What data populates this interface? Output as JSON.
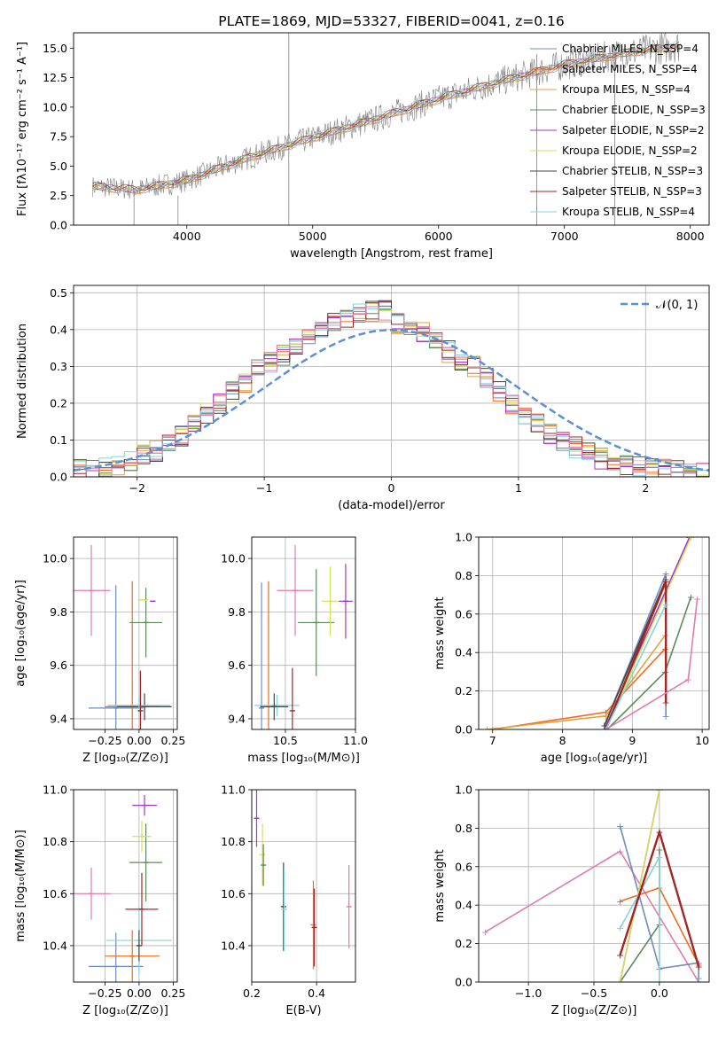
{
  "chart_data": [
    {
      "id": "spectrum",
      "type": "line",
      "title": "PLATE=1869, MJD=53327, FIBERID=0041, z=0.16",
      "xlabel": "wavelength [Angstrom, rest frame]",
      "ylabel": "Flux [fλ10⁻¹⁷ erg cm⁻² s⁻¹ A⁻¹]",
      "xlim": [
        3100,
        8150
      ],
      "ylim": [
        0,
        16.3
      ],
      "xticks": [
        4000,
        5000,
        6000,
        7000,
        8000
      ],
      "yticks": [
        0.0,
        2.5,
        5.0,
        7.5,
        10.0,
        12.5,
        15.0
      ],
      "grid": false,
      "legend_placement": "top-right",
      "data_shape": [
        [
          3250,
          3.3
        ],
        [
          3600,
          3.0
        ],
        [
          3800,
          3.4
        ],
        [
          4000,
          3.8
        ],
        [
          4300,
          5.0
        ],
        [
          4600,
          6.1
        ],
        [
          5000,
          7.4
        ],
        [
          5500,
          9.0
        ],
        [
          6000,
          10.7
        ],
        [
          6500,
          12.2
        ],
        [
          7000,
          13.6
        ],
        [
          7500,
          14.6
        ],
        [
          7900,
          15.2
        ]
      ],
      "series": [
        {
          "name": "Chabrier MILES, N_SSP=4",
          "color": "#6c8ebf"
        },
        {
          "name": "Salpeter MILES, N_SSP=4",
          "color": "#f26b21"
        },
        {
          "name": "Kroupa MILES, N_SSP=4",
          "color": "#e3a23c"
        },
        {
          "name": "Chabrier ELODIE, N_SSP=3",
          "color": "#5b8c5a"
        },
        {
          "name": "Salpeter ELODIE, N_SSP=2",
          "color": "#a335c7"
        },
        {
          "name": "Kroupa ELODIE, N_SSP=2",
          "color": "#d4e157"
        },
        {
          "name": "Chabrier STELIB, N_SSP=3",
          "color": "#444444"
        },
        {
          "name": "Salpeter STELIB, N_SSP=3",
          "color": "#a32626"
        },
        {
          "name": "Kroupa STELIB, N_SSP=4",
          "color": "#82d4dc"
        }
      ]
    },
    {
      "id": "residuals",
      "type": "histogram",
      "xlabel": "(data-model)/error",
      "ylabel": "Normed distribution",
      "xlim": [
        -2.5,
        2.5
      ],
      "ylim": [
        0,
        0.52
      ],
      "xticks": [
        -2,
        -1,
        0,
        1,
        2
      ],
      "xtick_labels": [
        "−2",
        "−1",
        "0",
        "1",
        "2"
      ],
      "yticks": [
        0.0,
        0.1,
        0.2,
        0.3,
        0.4,
        0.5
      ],
      "grid": true,
      "legend_placement": "top-right",
      "gaussian_label": "𝒩(0, 1)",
      "gaussian_color": "#5b8fd6",
      "bins": [
        -2.5,
        -2.4,
        -2.3,
        -2.2,
        -2.1,
        -2.0,
        -1.9,
        -1.8,
        -1.7,
        -1.6,
        -1.5,
        -1.4,
        -1.3,
        -1.2,
        -1.1,
        -1.0,
        -0.9,
        -0.8,
        -0.7,
        -0.6,
        -0.5,
        -0.4,
        -0.3,
        -0.2,
        -0.1,
        0.0,
        0.1,
        0.2,
        0.3,
        0.4,
        0.5,
        0.6,
        0.7,
        0.8,
        0.9,
        1.0,
        1.1,
        1.2,
        1.3,
        1.4,
        1.5,
        1.6,
        1.7,
        1.8,
        1.9,
        2.0,
        2.1,
        2.2,
        2.3,
        2.4,
        2.5
      ],
      "envelope": [
        0.02,
        0.02,
        0.025,
        0.035,
        0.045,
        0.06,
        0.07,
        0.09,
        0.11,
        0.14,
        0.17,
        0.2,
        0.23,
        0.26,
        0.29,
        0.31,
        0.33,
        0.36,
        0.38,
        0.41,
        0.42,
        0.43,
        0.44,
        0.45,
        0.45,
        0.42,
        0.41,
        0.39,
        0.37,
        0.34,
        0.32,
        0.3,
        0.27,
        0.23,
        0.2,
        0.17,
        0.15,
        0.12,
        0.1,
        0.08,
        0.07,
        0.05,
        0.04,
        0.03,
        0.025,
        0.02,
        0.02,
        0.015,
        0.015,
        0.01
      ]
    },
    {
      "id": "age-vs-Z",
      "type": "scatter",
      "xlabel": "Z [log₁₀(Z/Z⊙)]",
      "ylabel": "age  [log₁₀(age/yr)]",
      "xlim": [
        -0.48,
        0.28
      ],
      "ylim": [
        9.36,
        10.08
      ],
      "xticks": [
        -0.25,
        0.0,
        0.25
      ],
      "xtick_labels": [
        "−0.25",
        "0.00",
        "0.25"
      ],
      "yticks": [
        9.4,
        9.6,
        9.8,
        10.0
      ],
      "grid": true,
      "points": [
        {
          "x": -0.35,
          "y": 9.88,
          "xerr": 0.14,
          "yerr": 0.17,
          "color": "#e07bb0"
        },
        {
          "x": -0.17,
          "y": 9.44,
          "xerr": 0.2,
          "yerr": 0.46,
          "color": "#6c8ebf"
        },
        {
          "x": -0.05,
          "y": 9.445,
          "xerr": 0.2,
          "yerr": 0.47,
          "color": "#f26b21"
        },
        {
          "x": 0.04,
          "y": 9.445,
          "xerr": 0.2,
          "yerr": 0.05,
          "color": "#444444"
        },
        {
          "x": 0.05,
          "y": 9.76,
          "xerr": 0.12,
          "yerr": 0.13,
          "color": "#5b8c5a"
        },
        {
          "x": 0.1,
          "y": 9.84,
          "xerr": 0.02,
          "yerr": 0.0,
          "color": "#a335c7"
        },
        {
          "x": 0.03,
          "y": 9.845,
          "xerr": 0.04,
          "yerr": 0.0,
          "color": "#d4e157"
        },
        {
          "x": 0.0,
          "y": 9.45,
          "xerr": 0.23,
          "yerr": 0.03,
          "color": "#82d4dc"
        },
        {
          "x": 0.01,
          "y": 9.43,
          "xerr": 0.0,
          "yerr": 0.15,
          "color": "#a32626"
        }
      ]
    },
    {
      "id": "age-vs-mass",
      "type": "scatter",
      "xlabel": "mass [log₁₀(M/M⊙)]",
      "ylabel": "",
      "xlim": [
        10.26,
        11.0
      ],
      "ylim": [
        9.36,
        10.08
      ],
      "xticks": [
        10.5,
        11.0
      ],
      "xtick_labels": [
        "10.5",
        "11.0"
      ],
      "yticks": [
        9.4,
        9.6,
        9.8,
        10.0
      ],
      "grid": true,
      "points": [
        {
          "x": 10.57,
          "y": 9.88,
          "xerr": 0.13,
          "yerr": 0.17,
          "color": "#e07bb0"
        },
        {
          "x": 10.33,
          "y": 9.44,
          "xerr": 0.0,
          "yerr": 0.47,
          "color": "#6c8ebf"
        },
        {
          "x": 10.38,
          "y": 9.445,
          "xerr": 0.0,
          "yerr": 0.47,
          "color": "#f26b21"
        },
        {
          "x": 10.72,
          "y": 9.76,
          "xerr": 0.13,
          "yerr": 0.2,
          "color": "#5b8c5a"
        },
        {
          "x": 10.93,
          "y": 9.84,
          "xerr": 0.05,
          "yerr": 0.14,
          "color": "#a335c7"
        },
        {
          "x": 10.82,
          "y": 9.84,
          "xerr": 0.06,
          "yerr": 0.13,
          "color": "#d4e157"
        },
        {
          "x": 10.44,
          "y": 9.45,
          "xerr": 0.16,
          "yerr": 0.04,
          "color": "#82d4dc"
        },
        {
          "x": 10.55,
          "y": 9.43,
          "xerr": 0.0,
          "yerr": 0.16,
          "color": "#a32626"
        },
        {
          "x": 10.42,
          "y": 9.445,
          "xerr": 0.1,
          "yerr": 0.05,
          "color": "#444444"
        }
      ]
    },
    {
      "id": "mass-weight-vs-age",
      "type": "line",
      "xlabel": "age  [log₁₀(age/yr)]",
      "ylabel": "mass weight",
      "xlim": [
        6.8,
        10.1
      ],
      "ylim": [
        0,
        1.0
      ],
      "xticks": [
        7,
        8,
        9,
        10
      ],
      "yticks": [
        0.0,
        0.2,
        0.4,
        0.6,
        0.8,
        1.0
      ],
      "grid": true,
      "series": [
        {
          "color": "#6c8ebf",
          "x": [
            8.6,
            9.48,
            9.48
          ],
          "y": [
            0.02,
            0.81,
            0.07
          ]
        },
        {
          "color": "#f26b21",
          "x": [
            7.0,
            8.62,
            9.47
          ],
          "y": [
            0.0,
            0.09,
            0.42
          ]
        },
        {
          "color": "#e3a23c",
          "x": [
            6.92,
            8.62,
            9.47
          ],
          "y": [
            0.0,
            0.07,
            0.49
          ]
        },
        {
          "color": "#5b8c5a",
          "x": [
            8.64,
            9.47,
            9.84
          ],
          "y": [
            0.0,
            0.3,
            0.69
          ]
        },
        {
          "color": "#a335c7",
          "x": [
            8.6,
            9.82
          ],
          "y": [
            0.0,
            1.0
          ]
        },
        {
          "color": "#d4e157",
          "x": [
            8.62,
            9.84
          ],
          "y": [
            0.0,
            1.0
          ]
        },
        {
          "color": "#444444",
          "x": [
            8.6,
            9.48
          ],
          "y": [
            0.02,
            0.78
          ]
        },
        {
          "color": "#a32626",
          "x": [
            8.62,
            9.48,
            9.48
          ],
          "y": [
            0.0,
            0.77,
            0.14
          ]
        },
        {
          "color": "#82d4dc",
          "x": [
            8.62,
            9.48
          ],
          "y": [
            0.0,
            0.65
          ]
        },
        {
          "color": "#e07bb0",
          "x": [
            8.62,
            9.8,
            9.93
          ],
          "y": [
            0.0,
            0.26,
            0.68
          ]
        }
      ]
    },
    {
      "id": "mass-vs-Z",
      "type": "scatter",
      "xlabel": "Z [log₁₀(Z/Z⊙)]",
      "ylabel": "mass [log₁₀(M/M⊙)]",
      "xlim": [
        -0.48,
        0.28
      ],
      "ylim": [
        10.26,
        11.0
      ],
      "xticks": [
        -0.25,
        0.0,
        0.25
      ],
      "xtick_labels": [
        "−0.25",
        "0.00",
        "0.25"
      ],
      "yticks": [
        10.4,
        10.6,
        10.8,
        11.0
      ],
      "grid": true,
      "points": [
        {
          "x": -0.35,
          "y": 10.6,
          "xerr": 0.14,
          "yerr": 0.1,
          "color": "#e07bb0"
        },
        {
          "x": -0.17,
          "y": 10.32,
          "xerr": 0.2,
          "yerr": 0.13,
          "color": "#6c8ebf"
        },
        {
          "x": -0.05,
          "y": 10.36,
          "xerr": 0.2,
          "yerr": 0.1,
          "color": "#f26b21"
        },
        {
          "x": 0.05,
          "y": 10.72,
          "xerr": 0.12,
          "yerr": 0.15,
          "color": "#5b8c5a"
        },
        {
          "x": 0.04,
          "y": 10.94,
          "xerr": 0.09,
          "yerr": 0.04,
          "color": "#a335c7"
        },
        {
          "x": 0.02,
          "y": 10.82,
          "xerr": 0.07,
          "yerr": 0.06,
          "color": "#d4e157"
        },
        {
          "x": 0.0,
          "y": 10.42,
          "xerr": 0.24,
          "yerr": 0.13,
          "color": "#82d4dc"
        },
        {
          "x": 0.02,
          "y": 10.54,
          "xerr": 0.12,
          "yerr": 0.14,
          "color": "#a32626"
        },
        {
          "x": 0.0,
          "y": 10.4,
          "xerr": 0.0,
          "yerr": 0.06,
          "color": "#444444"
        }
      ]
    },
    {
      "id": "mass-vs-EBV",
      "type": "scatter",
      "xlabel": "E(B-V)",
      "ylabel": "",
      "xlim": [
        0.2,
        0.52
      ],
      "ylim": [
        10.26,
        11.0
      ],
      "xticks": [
        0.2,
        0.4
      ],
      "xtick_labels": [
        "0.2",
        "0.4"
      ],
      "yticks": [
        10.4,
        10.6,
        10.8,
        11.0
      ],
      "grid": true,
      "points": [
        {
          "x": 0.215,
          "y": 10.89,
          "xerr": 0.0,
          "yerr": 0.11,
          "color": "#a335c7"
        },
        {
          "x": 0.233,
          "y": 10.75,
          "xerr": 0.0,
          "yerr": 0.12,
          "color": "#d4e157"
        },
        {
          "x": 0.236,
          "y": 10.71,
          "xerr": 0.0,
          "yerr": 0.08,
          "color": "#5b8c5a"
        },
        {
          "x": 0.298,
          "y": 10.55,
          "xerr": 0.0,
          "yerr": 0.17,
          "color": "#444444"
        },
        {
          "x": 0.3,
          "y": 10.54,
          "xerr": 0.0,
          "yerr": 0.16,
          "color": "#82d4dc"
        },
        {
          "x": 0.39,
          "y": 10.48,
          "xerr": 0.0,
          "yerr": 0.17,
          "color": "#f26b21"
        },
        {
          "x": 0.393,
          "y": 10.47,
          "xerr": 0.0,
          "yerr": 0.15,
          "color": "#a32626"
        },
        {
          "x": 0.5,
          "y": 10.55,
          "xerr": 0.0,
          "yerr": 0.16,
          "color": "#e07bb0"
        }
      ]
    },
    {
      "id": "mass-weight-vs-Z",
      "type": "line",
      "xlabel": "Z [log₁₀(Z/Z⊙)]",
      "ylabel": "mass weight",
      "xlim": [
        -1.38,
        0.38
      ],
      "ylim": [
        0,
        1.0
      ],
      "xticks": [
        -1.0,
        -0.5,
        0.0
      ],
      "xtick_labels": [
        "−1.0",
        "−0.5",
        "0.0"
      ],
      "yticks": [
        0.0,
        0.2,
        0.4,
        0.6,
        0.8,
        1.0
      ],
      "grid": true,
      "series": [
        {
          "color": "#e07bb0",
          "x": [
            -1.33,
            -0.3,
            0.3
          ],
          "y": [
            0.26,
            0.68,
            0.0
          ]
        },
        {
          "color": "#6c8ebf",
          "x": [
            -0.3,
            0.0,
            0.3,
            0.3
          ],
          "y": [
            0.81,
            0.07,
            0.1,
            0.02
          ]
        },
        {
          "color": "#f26b21",
          "x": [
            -0.3,
            0.0,
            0.3
          ],
          "y": [
            0.42,
            0.49,
            0.09
          ]
        },
        {
          "color": "#5b8c5a",
          "x": [
            -0.3,
            0.0,
            0.0
          ],
          "y": [
            0.0,
            0.3,
            0.69
          ]
        },
        {
          "color": "#a335c7",
          "x": [
            -0.3,
            0.0
          ],
          "y": [
            0.0,
            1.0
          ]
        },
        {
          "color": "#d4e157",
          "x": [
            -0.3,
            0.0
          ],
          "y": [
            0.0,
            1.0
          ]
        },
        {
          "color": "#82d4dc",
          "x": [
            -0.3,
            0.0,
            0.0
          ],
          "y": [
            0.28,
            0.65,
            0.0
          ]
        },
        {
          "color": "#a32626",
          "x": [
            -0.3,
            0.0,
            0.3
          ],
          "y": [
            0.14,
            0.78,
            0.08
          ]
        }
      ]
    }
  ]
}
